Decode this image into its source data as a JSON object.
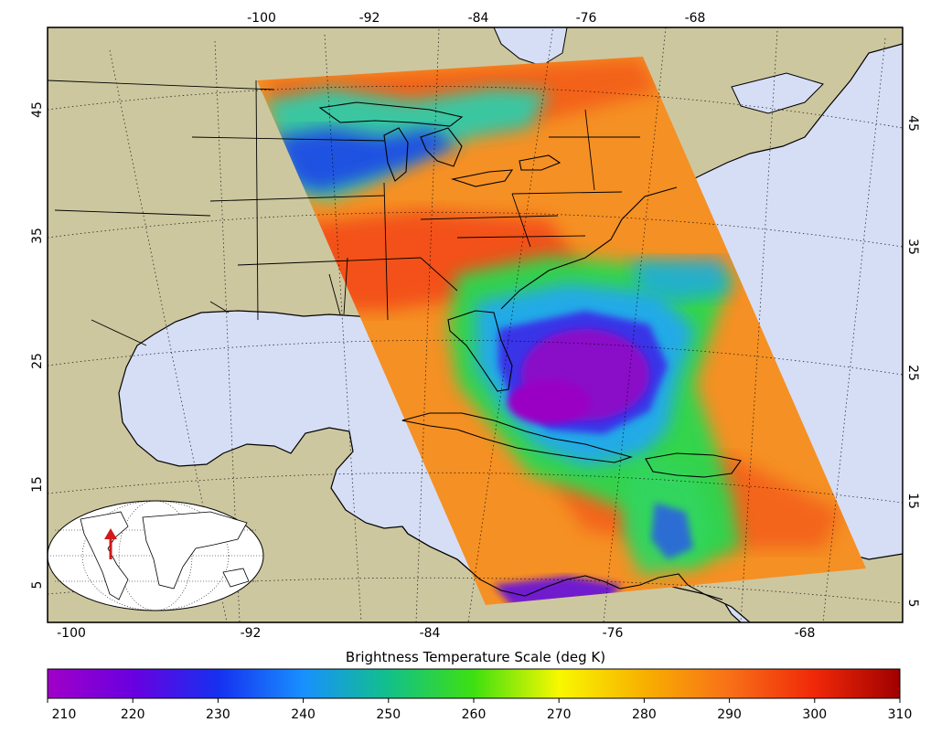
{
  "map": {
    "top_lon_ticks": [
      "-100",
      "-92",
      "-84",
      "-76",
      "-68"
    ],
    "bottom_lon_ticks": [
      "-100",
      "-92",
      "-84",
      "-76",
      "-68"
    ],
    "left_lat_ticks": [
      "45",
      "35",
      "25",
      "15",
      "5"
    ],
    "right_lat_ticks": [
      "45",
      "35",
      "25",
      "15",
      "5"
    ],
    "colors": {
      "land": "#cdc7a0",
      "ocean": "#d6def5",
      "coast": "#000000",
      "swath_background": "#f59024",
      "storm_core": "#8a10c8",
      "locator_marker": "#d21a1a"
    }
  },
  "colorbar": {
    "title": "Brightness Temperature Scale (deg K)",
    "tick_labels": [
      "210",
      "220",
      "230",
      "240",
      "250",
      "260",
      "270",
      "280",
      "290",
      "300",
      "310"
    ],
    "min": 210,
    "max": 310
  }
}
